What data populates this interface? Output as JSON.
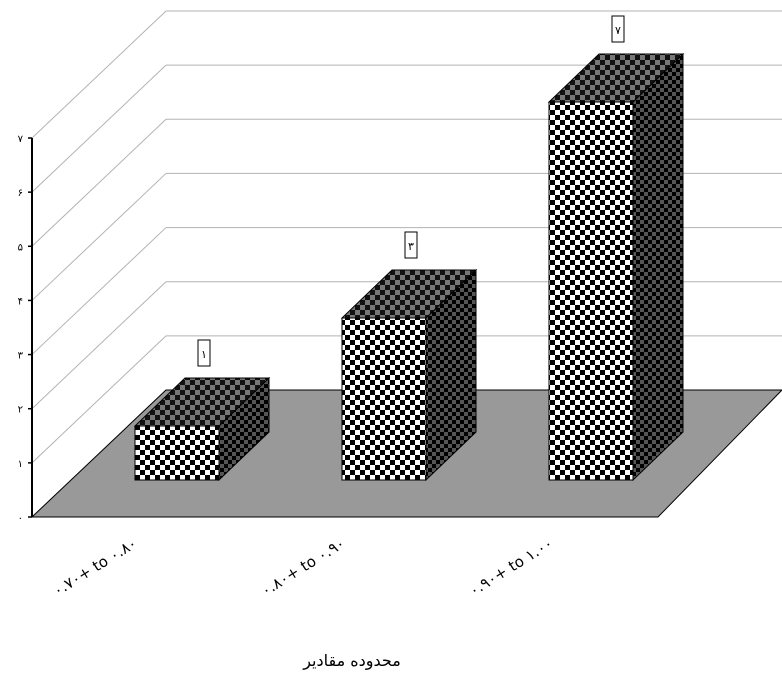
{
  "chart_data": {
    "type": "bar",
    "categories": [
      "۰.۷۰+ to ۰.۸۰",
      "۰.۸۰+ to ۰.۹۰",
      "۰.۹۰+ to ۱.۰۰"
    ],
    "values": [
      1,
      3,
      7
    ],
    "data_labels": [
      "۱",
      "۳",
      "۷"
    ],
    "ylim": [
      0,
      7
    ],
    "yticks": [
      0,
      1,
      2,
      3,
      4,
      5,
      6,
      7
    ],
    "ytick_labels": [
      "۰",
      "۱",
      "۲",
      "۳",
      "۴",
      "۵",
      "۶",
      "۷"
    ],
    "xlabel": "محدوده مقادیر",
    "ylabel": "",
    "title": "",
    "grid": true,
    "three_d": true,
    "legend": "none",
    "colors": {
      "floor": "#999999",
      "checker_dark": "#000000",
      "checker_light": "#ffffff",
      "grid": "#b3b3b3"
    }
  }
}
